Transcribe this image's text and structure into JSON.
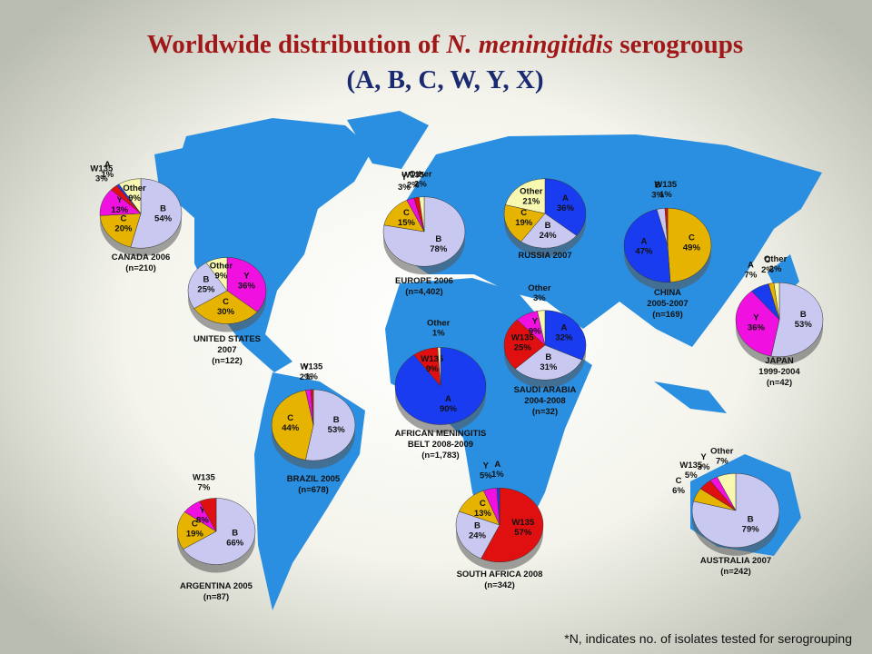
{
  "title": {
    "line1": [
      "Worldwide distribution of ",
      "N. meningitidis",
      " serogroups"
    ],
    "line2": "(A, B, C, W, Y, X)"
  },
  "footnote": "*N, indicates no. of isolates tested for serogrouping",
  "chart_data": [
    {
      "type": "pie",
      "title": [
        "CANADA 2006",
        "(n=210)"
      ],
      "categories": [
        "B",
        "C",
        "Y",
        "W135",
        "A",
        "Other"
      ],
      "values": [
        54,
        20,
        13,
        3,
        1,
        9
      ],
      "value_labels": [
        "54%",
        "20%",
        "13%",
        "3%",
        "1%",
        "9%"
      ],
      "colors": [
        "#c8c8f0",
        "#e6b400",
        "#f010e0",
        "#e01010",
        "#1a3cf0",
        "#f8f8b0"
      ]
    },
    {
      "type": "pie",
      "title": [
        "UNITED STATES",
        "2007",
        "(n=122)"
      ],
      "categories": [
        "Y",
        "C",
        "B",
        "Other"
      ],
      "values": [
        36,
        30,
        25,
        9
      ],
      "value_labels": [
        "36%",
        "30%",
        "25%",
        "9%"
      ],
      "colors": [
        "#f010e0",
        "#e6b400",
        "#c8c8f0",
        "#f8f8b0"
      ]
    },
    {
      "type": "pie",
      "title": [
        "EUROPE 2006",
        "(n=4,402)"
      ],
      "categories": [
        "B",
        "C",
        "Y",
        "W135",
        "Other"
      ],
      "values": [
        78,
        15,
        3,
        2,
        2
      ],
      "value_labels": [
        "78%",
        "15%",
        "3%",
        "2%",
        "2%"
      ],
      "colors": [
        "#c8c8f0",
        "#e6b400",
        "#f010e0",
        "#e01010",
        "#f8f8b0"
      ]
    },
    {
      "type": "pie",
      "title": [
        "RUSSIA 2007"
      ],
      "categories": [
        "A",
        "B",
        "C",
        "Other"
      ],
      "values": [
        36,
        24,
        19,
        21
      ],
      "value_labels": [
        "36%",
        "24%",
        "19%",
        "21%"
      ],
      "colors": [
        "#1a3cf0",
        "#c8c8f0",
        "#e6b400",
        "#f8f8b0"
      ]
    },
    {
      "type": "pie",
      "title": [
        "CHINA",
        "2005-2007",
        "(n=169)"
      ],
      "categories": [
        "C",
        "A",
        "B",
        "W135"
      ],
      "values": [
        49,
        47,
        3,
        1
      ],
      "value_labels": [
        "49%",
        "47%",
        "3%",
        "1%"
      ],
      "colors": [
        "#e6b400",
        "#1a3cf0",
        "#c8c8f0",
        "#e01010"
      ]
    },
    {
      "type": "pie",
      "title": [
        "JAPAN",
        "1999-2004",
        "(n=42)"
      ],
      "categories": [
        "B",
        "Y",
        "A",
        "C",
        "Other"
      ],
      "values": [
        53,
        36,
        7,
        2,
        2
      ],
      "value_labels": [
        "53%",
        "36%",
        "7%",
        "2%",
        "2%"
      ],
      "colors": [
        "#c8c8f0",
        "#f010e0",
        "#1a3cf0",
        "#e6b400",
        "#f8f8b0"
      ]
    },
    {
      "type": "pie",
      "title": [
        "SAUDI ARABIA",
        "2004-2008",
        "(n=32)"
      ],
      "categories": [
        "A",
        "B",
        "W135",
        "Y",
        "Other"
      ],
      "values": [
        32,
        31,
        25,
        9,
        3
      ],
      "value_labels": [
        "32%",
        "31%",
        "25%",
        "9%",
        "3%"
      ],
      "colors": [
        "#1a3cf0",
        "#c8c8f0",
        "#e01010",
        "#f010e0",
        "#f8f8b0"
      ]
    },
    {
      "type": "pie",
      "title": [
        "AFRICAN MENINGITIS",
        "BELT 2008-2009",
        "(n=1,783)"
      ],
      "categories": [
        "A",
        "W135",
        "Other"
      ],
      "values": [
        90,
        9,
        1
      ],
      "value_labels": [
        "90%",
        "9%",
        "1%"
      ],
      "colors": [
        "#1a3cf0",
        "#e01010",
        "#f8f8b0"
      ]
    },
    {
      "type": "pie",
      "title": [
        "BRAZIL 2005",
        "(n=678)"
      ],
      "categories": [
        "B",
        "C",
        "Y",
        "W135"
      ],
      "values": [
        53,
        44,
        2,
        1
      ],
      "value_labels": [
        "53%",
        "44%",
        "2%",
        "1%"
      ],
      "colors": [
        "#c8c8f0",
        "#e6b400",
        "#f010e0",
        "#e01010"
      ]
    },
    {
      "type": "pie",
      "title": [
        "ARGENTINA 2005",
        "(n=87)"
      ],
      "categories": [
        "B",
        "C",
        "Y",
        "W135"
      ],
      "values": [
        66,
        19,
        8,
        7
      ],
      "value_labels": [
        "66%",
        "19%",
        "8%",
        "7%"
      ],
      "colors": [
        "#c8c8f0",
        "#e6b400",
        "#f010e0",
        "#e01010"
      ]
    },
    {
      "type": "pie",
      "title": [
        "SOUTH AFRICA 2008",
        "(n=342)"
      ],
      "categories": [
        "W135",
        "B",
        "C",
        "Y",
        "A"
      ],
      "values": [
        57,
        24,
        13,
        5,
        1
      ],
      "value_labels": [
        "57%",
        "24%",
        "13%",
        "5%",
        "1%"
      ],
      "colors": [
        "#e01010",
        "#c8c8f0",
        "#e6b400",
        "#f010e0",
        "#1a3cf0"
      ]
    },
    {
      "type": "pie",
      "title": [
        "AUSTRALIA 2007",
        "(n=242)"
      ],
      "categories": [
        "B",
        "C",
        "W135",
        "Y",
        "Other"
      ],
      "values": [
        79,
        6,
        5,
        3,
        7
      ],
      "value_labels": [
        "79%",
        "6%",
        "5%",
        "3%",
        "7%"
      ],
      "colors": [
        "#c8c8f0",
        "#e6b400",
        "#e01010",
        "#f010e0",
        "#f8f8b0"
      ]
    }
  ]
}
